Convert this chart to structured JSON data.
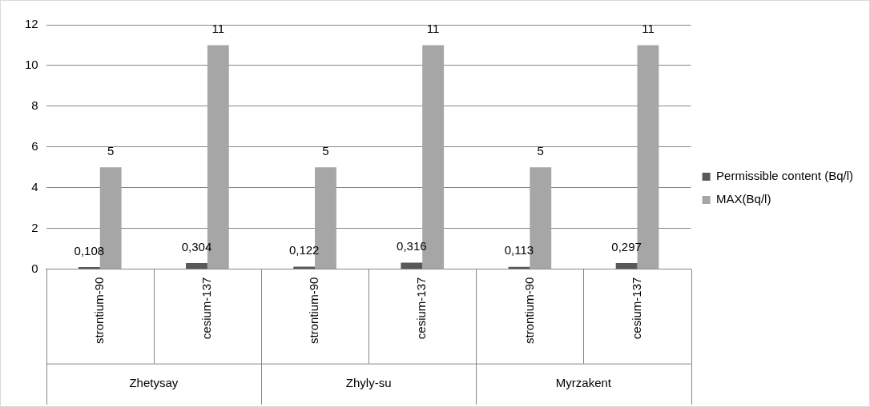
{
  "chart_data": {
    "type": "bar",
    "categories": [
      "strontium-90",
      "cesium-137",
      "strontium-90",
      "cesium-137",
      "strontium-90",
      "cesium-137"
    ],
    "series": [
      {
        "name": "Permissible content (Bq/l)",
        "color": "#595959",
        "values": [
          0.108,
          0.304,
          0.122,
          0.316,
          0.113,
          0.297
        ],
        "value_labels": [
          "0,108",
          "0,304",
          "0,122",
          "0,316",
          "0,113",
          "0,297"
        ]
      },
      {
        "name": "MAX(Bq/l)",
        "color": "#a6a6a6",
        "values": [
          5,
          11,
          5,
          11,
          5,
          11
        ],
        "value_labels": [
          "5",
          "11",
          "5",
          "11",
          "5",
          "11"
        ]
      }
    ],
    "annotations": [
      "Zhetysay",
      "Zhyly-su",
      "Myrzakent"
    ],
    "ylim": [
      0,
      12
    ],
    "yticks": [
      0,
      2,
      4,
      6,
      8,
      10,
      12
    ],
    "grid": "y",
    "legend": "right"
  }
}
